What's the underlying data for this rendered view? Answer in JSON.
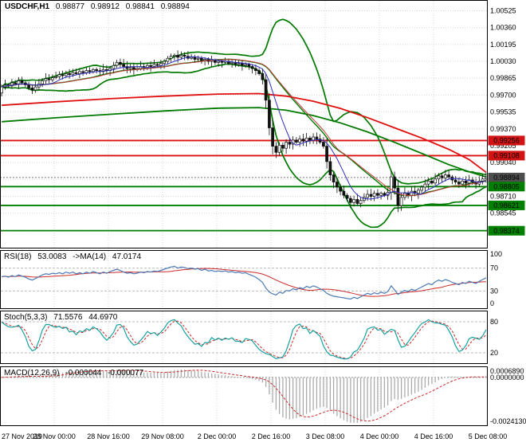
{
  "window": {
    "title_symbol": "USDCHF,H1",
    "ohlc": {
      "open": "0.98877",
      "high": "0.98912",
      "low": "0.98841",
      "close": "0.98894"
    }
  },
  "panels": {
    "rsi": {
      "label": "RSI(18)",
      "value": "53.0083",
      "ma_label": "->MA(14)",
      "ma_value": "47.0174"
    },
    "stoch": {
      "label": "Stoch(5,3,3)",
      "value": "71.5576",
      "signal_value": "44.6970"
    },
    "macd": {
      "label": "MACD(12,26,9)",
      "value": "-0.000044",
      "signal_value": "-0.000077"
    }
  },
  "colors": {
    "red_line": "#dd1111",
    "green_line": "#008000",
    "bollinger": "#007a00",
    "ma_fast_blue": "#2f2fbf",
    "ma_medium_red": "#c43c3c",
    "slow_red": "#e01010",
    "slow_green": "#007a00",
    "rsi_line": "#4a7ab5",
    "signal_red": "#cc2929",
    "stoch_k": "#17a2a2",
    "macd_bar": "#aaaaaa",
    "candle_dark": "#111111",
    "candle_light": "#ffffff",
    "badge_red": "#d41414",
    "badge_green": "#008000",
    "badge_dark": "#4d4d4d",
    "grid": "#d6d6d6",
    "level_dash": "#bbbbbb",
    "current_price_line": "#777777"
  },
  "chart_data": [
    {
      "type": "candlestick",
      "symbol": "USDCHF",
      "timeframe": "H1",
      "x_labels": [
        "27 Nov 2019",
        "28 Nov 00:00",
        "28 Nov 16:00",
        "29 Nov 08:00",
        "2 Dec 00:00",
        "2 Dec 16:00",
        "3 Dec 08:00",
        "4 Dec 00:00",
        "4 Dec 16:00",
        "5 Dec 08:00"
      ],
      "price_axis_labels": [
        "1.00525",
        "1.00360",
        "1.00195",
        "1.00030",
        "0.99865",
        "0.99700",
        "0.99535",
        "0.99370",
        "0.99205",
        "0.99040",
        "0.98875",
        "0.98710",
        "0.98545",
        "0.98380"
      ],
      "price_max": 1.0063,
      "price_min": 0.982,
      "first_open": 0.9972,
      "closes": [
        0.9978,
        0.998,
        0.9979,
        0.9982,
        0.9981,
        0.9984,
        0.9982,
        0.998,
        0.9977,
        0.9975,
        0.9978,
        0.9981,
        0.9984,
        0.9986,
        0.9985,
        0.9987,
        0.9988,
        0.999,
        0.9989,
        0.9991,
        0.999,
        0.9992,
        0.9991,
        0.9993,
        0.9992,
        0.9994,
        0.9993,
        0.9995,
        0.9994,
        0.9993,
        0.9995,
        0.9994,
        0.9996,
        0.9999,
        1.0002,
        1.0,
        0.9998,
        0.9996,
        0.9997,
        0.9995,
        0.9996,
        0.9998,
        0.9997,
        0.9999,
        0.9998,
        1.0,
        0.9999,
        1.0001,
        1.0003,
        1.0006,
        1.0008,
        1.0009,
        1.0007,
        1.0009,
        1.0008,
        1.0006,
        1.0007,
        1.0005,
        1.0006,
        1.0004,
        1.0005,
        1.0003,
        1.0004,
        1.0002,
        1.0003,
        1.0002,
        1.0003,
        1.0001,
        1.0002,
        1.0,
        1.0001,
        0.9999,
        1.0,
        0.9998,
        0.9996,
        0.9994,
        0.9991,
        0.9985,
        0.9965,
        0.9938,
        0.992,
        0.9914,
        0.9921,
        0.9918,
        0.9924,
        0.9922,
        0.9926,
        0.9924,
        0.9927,
        0.9925,
        0.9928,
        0.9926,
        0.9929,
        0.9927,
        0.9924,
        0.992,
        0.9905,
        0.9892,
        0.9885,
        0.988,
        0.9876,
        0.9872,
        0.9869,
        0.9865,
        0.9868,
        0.9864,
        0.9867,
        0.987,
        0.9873,
        0.9871,
        0.9874,
        0.9872,
        0.9874,
        0.9872,
        0.9875,
        0.989,
        0.9879,
        0.9862,
        0.987,
        0.9874,
        0.9872,
        0.9876,
        0.9874,
        0.9877,
        0.988,
        0.9883,
        0.9886,
        0.9884,
        0.9888,
        0.9891,
        0.9889,
        0.9892,
        0.989,
        0.9887,
        0.9885,
        0.9883,
        0.9886,
        0.9884,
        0.9887,
        0.9885,
        0.9883,
        0.9886,
        0.9888,
        0.98894
      ],
      "overlays": {
        "bollinger_period": 20,
        "bollinger_deviation": 2,
        "ma_fast_period": 8,
        "ma_medium_period": 21,
        "slow_red_line": [
          [
            0,
            0.996
          ],
          [
            16,
            0.99635
          ],
          [
            32,
            0.99665
          ],
          [
            48,
            0.9969
          ],
          [
            64,
            0.9971
          ],
          [
            76,
            0.99715
          ],
          [
            84,
            0.9969
          ],
          [
            92,
            0.9964
          ],
          [
            100,
            0.9957
          ],
          [
            108,
            0.9948
          ],
          [
            116,
            0.9938
          ],
          [
            124,
            0.9928
          ],
          [
            132,
            0.9917
          ],
          [
            138,
            0.9907
          ],
          [
            143,
            0.98945
          ]
        ],
        "slow_green_line": [
          [
            0,
            0.9944
          ],
          [
            16,
            0.99478
          ],
          [
            32,
            0.99512
          ],
          [
            48,
            0.99545
          ],
          [
            64,
            0.99572
          ],
          [
            76,
            0.99578
          ],
          [
            84,
            0.99552
          ],
          [
            92,
            0.995
          ],
          [
            100,
            0.99428
          ],
          [
            108,
            0.9934
          ],
          [
            116,
            0.99238
          ],
          [
            124,
            0.9913
          ],
          [
            132,
            0.9902
          ],
          [
            138,
            0.9895
          ],
          [
            143,
            0.989
          ]
        ]
      },
      "hlines_red": [
        0.99256,
        0.99108
      ],
      "hlines_green": [
        0.98805,
        0.98621,
        0.98374
      ],
      "current_price": 0.98894,
      "badges": [
        {
          "text": "0.99256",
          "price": 0.99256,
          "style": "red"
        },
        {
          "text": "0.99108",
          "price": 0.99108,
          "style": "red"
        },
        {
          "text": "0.98894",
          "price": 0.98894,
          "style": "dark"
        },
        {
          "text": "0.98805",
          "price": 0.98805,
          "style": "green"
        },
        {
          "text": "0.98621",
          "price": 0.98621,
          "style": "green"
        },
        {
          "text": "0.98374",
          "price": 0.98374,
          "style": "green"
        }
      ]
    },
    {
      "type": "line",
      "name": "RSI(18)",
      "range": [
        0,
        100
      ],
      "levels": [
        70,
        30
      ],
      "ma_period": 14,
      "axis_labels": [
        {
          "text": "100",
          "v": 100
        },
        {
          "text": "70",
          "v": 70
        },
        {
          "text": "30",
          "v": 30
        },
        {
          "text": "0",
          "v": 0
        }
      ],
      "values": [
        55,
        56,
        54,
        57,
        55,
        58,
        56,
        54,
        51,
        49,
        52,
        55,
        58,
        60,
        59,
        61,
        60,
        62,
        60,
        63,
        61,
        63,
        60,
        62,
        60,
        63,
        61,
        64,
        62,
        60,
        63,
        61,
        64,
        66,
        68,
        66,
        63,
        61,
        62,
        60,
        61,
        63,
        62,
        64,
        63,
        65,
        64,
        66,
        68,
        70,
        72,
        73,
        70,
        72,
        71,
        69,
        70,
        68,
        69,
        66,
        68,
        65,
        66,
        64,
        65,
        64,
        65,
        63,
        64,
        62,
        63,
        61,
        62,
        59,
        57,
        54,
        50,
        45,
        35,
        28,
        25,
        23,
        28,
        26,
        31,
        30,
        34,
        32,
        36,
        34,
        38,
        36,
        39,
        37,
        34,
        31,
        26,
        23,
        21,
        20,
        19,
        18,
        17,
        16,
        19,
        17,
        20,
        23,
        26,
        24,
        27,
        25,
        28,
        26,
        29,
        39,
        32,
        24,
        28,
        31,
        29,
        33,
        31,
        34,
        37,
        40,
        43,
        41,
        46,
        49,
        47,
        50,
        48,
        45,
        43,
        41,
        45,
        43,
        47,
        45,
        43,
        47,
        50,
        53
      ]
    },
    {
      "type": "stochastic",
      "name": "Stoch(5,3,3)",
      "k_period": 5,
      "d_period": 3,
      "slowing": 3,
      "range": [
        0,
        100
      ],
      "levels": [
        80,
        20
      ],
      "axis_labels": [
        {
          "text": "80",
          "v": 80
        },
        {
          "text": "20",
          "v": 20
        }
      ]
    },
    {
      "type": "macd",
      "name": "MACD(12,26,9)",
      "fast_ema": 12,
      "slow_ema": 26,
      "signal_period": 9,
      "axis_labels": [
        "0.0006890",
        "0.0000000",
        "-0.0024130"
      ]
    }
  ]
}
